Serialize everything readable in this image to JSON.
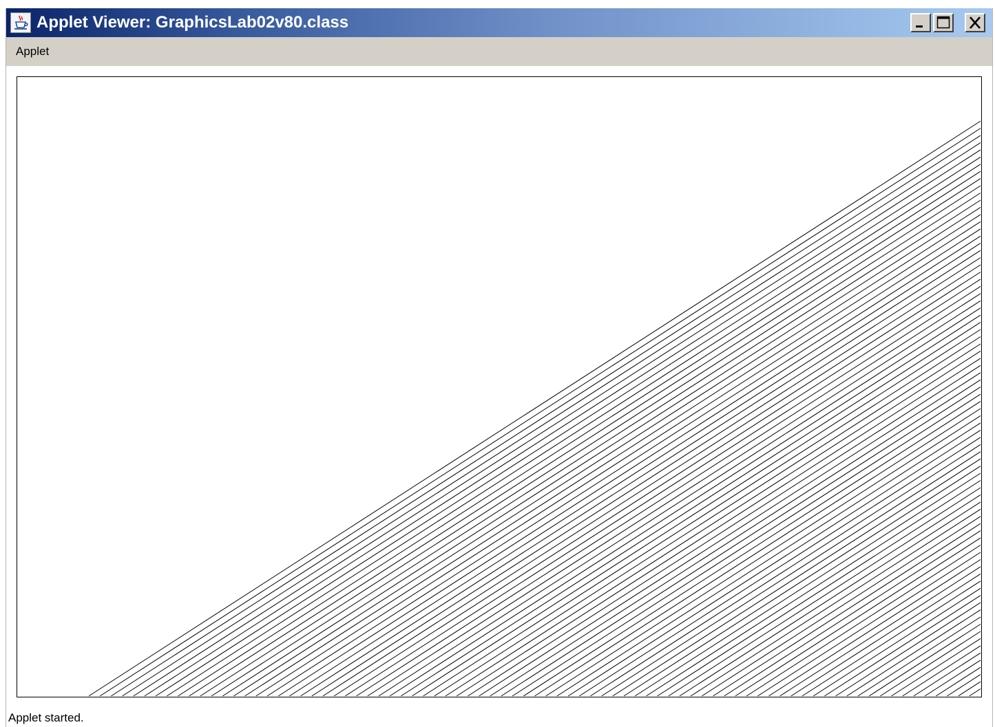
{
  "window": {
    "title": "Applet Viewer: GraphicsLab02v80.class",
    "icon": "java-cup-icon",
    "controls": {
      "minimize_icon": "minimize-icon",
      "maximize_icon": "maximize-icon",
      "close_icon": "close-icon"
    }
  },
  "menubar": {
    "items": [
      {
        "label": "Applet"
      }
    ]
  },
  "canvas": {
    "line_color": "#000000",
    "background_color": "#ffffff"
  },
  "statusbar": {
    "text": "Applet started."
  }
}
